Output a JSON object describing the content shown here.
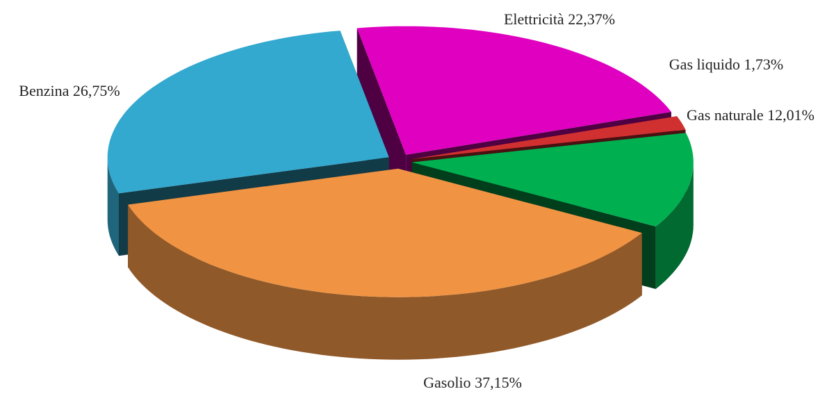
{
  "chart_data": {
    "type": "pie",
    "categories": [
      "Elettricità",
      "Gas liquido",
      "Gas naturale",
      "Gasolio",
      "Benzina"
    ],
    "values": [
      22.37,
      1.73,
      12.01,
      37.15,
      26.75
    ],
    "value_labels": [
      "22,37%",
      "1,73%",
      "12,01%",
      "37,15%",
      "26,75%"
    ],
    "colors": [
      "#e000c0",
      "#d03030",
      "#00b050",
      "#f09444",
      "#33a9cf"
    ]
  }
}
